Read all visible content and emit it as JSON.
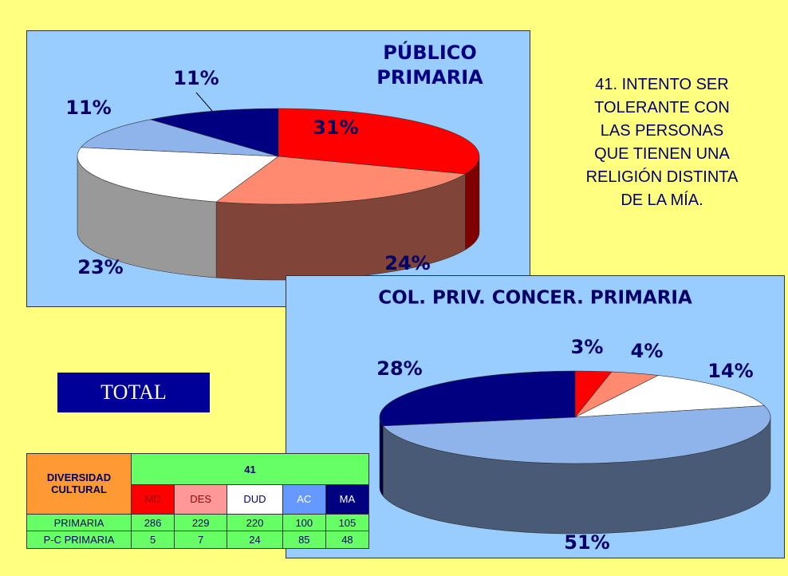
{
  "chart_data": [
    {
      "type": "pie",
      "title": "PÚBLICO PRIMARIA",
      "values": [
        31,
        24,
        23,
        11,
        11
      ],
      "value_labels": [
        "31%",
        "24%",
        "23%",
        "11%",
        "11%"
      ],
      "colors": [
        "#ff0000",
        "#ff8a70",
        "#ffffff",
        "#8fb4ec",
        "#000080"
      ]
    },
    {
      "type": "pie",
      "title": "COL. PRIV. CONCER. PRIMARIA",
      "values": [
        3,
        4,
        14,
        51,
        28
      ],
      "value_labels": [
        "3%",
        "4%",
        "14%",
        "51%",
        "28%"
      ],
      "colors": [
        "#ff0000",
        "#ff8a70",
        "#ffffff",
        "#8fb4ec",
        "#000080"
      ]
    }
  ],
  "question": [
    "41. INTENTO SER",
    "TOLERANTE CON",
    "LAS PERSONAS",
    "QUE TIENEN UNA",
    "RELIGIÓN DISTINTA",
    "DE LA MÍA."
  ],
  "total": "TOTAL",
  "table": {
    "header": "DIVERSIDAD CULTURAL",
    "question": "41",
    "columns": [
      "MD",
      "DES",
      "DUD",
      "AC",
      "MA"
    ],
    "rows": [
      {
        "label": "PRIMARIA",
        "values": [
          286,
          229,
          220,
          100,
          105
        ]
      },
      {
        "label": "P-C PRIMARIA",
        "values": [
          5,
          7,
          24,
          85,
          48
        ]
      }
    ]
  }
}
